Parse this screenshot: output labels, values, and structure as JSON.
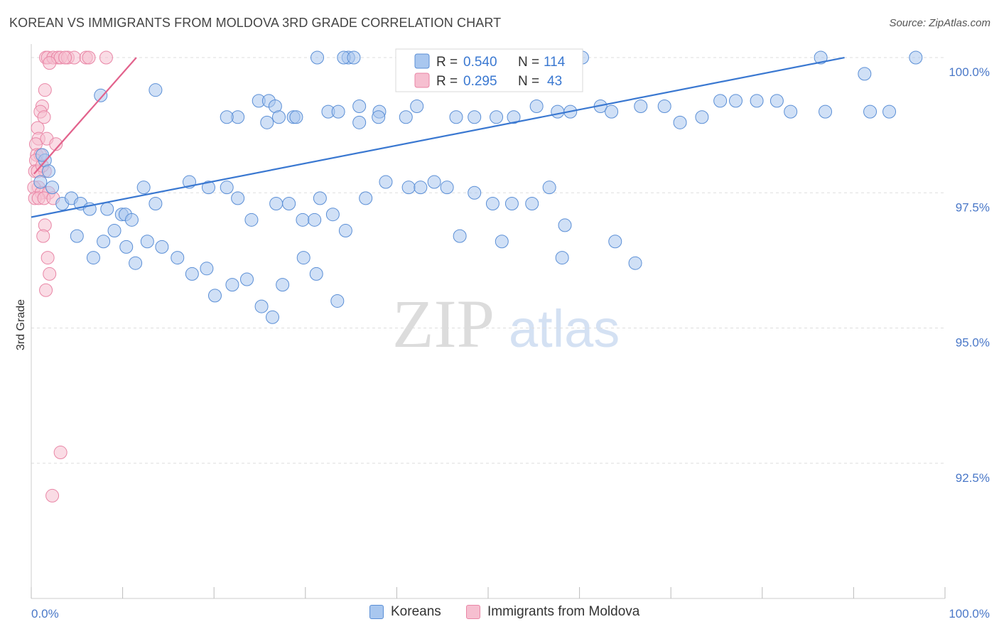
{
  "header": {
    "title": "KOREAN VS IMMIGRANTS FROM MOLDOVA 3RD GRADE CORRELATION CHART",
    "source": "Source: ZipAtlas.com"
  },
  "watermark": {
    "zip": "ZIP",
    "atlas": "atlas"
  },
  "legend": {
    "r_label": "R =",
    "n_label": "N =",
    "items": [
      {
        "name": "Koreans",
        "r": "0.540",
        "n": "114"
      },
      {
        "name": "Immigrants from Moldova",
        "r": "0.295",
        "n": "43"
      }
    ]
  },
  "colors": {
    "blue_fill": "#a9c7ef",
    "blue_stroke": "#5b8fd6",
    "blue_line": "#3a78d1",
    "pink_fill": "#f6bfd0",
    "pink_stroke": "#e986a6",
    "pink_line": "#e2628c",
    "tick_text": "#4a78c8",
    "grid": "#dddddd"
  },
  "chart_data": {
    "type": "scatter",
    "title": "KOREAN VS IMMIGRANTS FROM MOLDOVA 3RD GRADE CORRELATION CHART",
    "xlabel": "",
    "ylabel": "3rd Grade",
    "xlim": [
      0,
      100
    ],
    "ylim": [
      90.0,
      100.25
    ],
    "x_tick_labels": [
      "0.0%",
      "100.0%"
    ],
    "y_ticks": [
      {
        "value": 100.0,
        "label": "100.0%"
      },
      {
        "value": 97.5,
        "label": "97.5%"
      },
      {
        "value": 95.0,
        "label": "95.0%"
      },
      {
        "value": 92.5,
        "label": "92.5%"
      }
    ],
    "grid": true,
    "series": [
      {
        "name": "Koreans",
        "color": "blue",
        "trendline": [
          [
            0,
            97.05
          ],
          [
            89,
            100.0
          ]
        ],
        "points": [
          [
            31.3,
            100.0
          ],
          [
            34.7,
            100.0
          ],
          [
            34.2,
            100.0
          ],
          [
            35.3,
            100.0
          ],
          [
            47.8,
            100.0
          ],
          [
            57.8,
            100.0
          ],
          [
            60.3,
            100.0
          ],
          [
            86.4,
            100.0
          ],
          [
            96.8,
            100.0
          ],
          [
            91.2,
            99.7
          ],
          [
            7.6,
            99.3
          ],
          [
            13.6,
            99.4
          ],
          [
            24.9,
            99.2
          ],
          [
            26.0,
            99.2
          ],
          [
            26.7,
            99.1
          ],
          [
            32.5,
            99.0
          ],
          [
            35.9,
            99.1
          ],
          [
            38.1,
            99.0
          ],
          [
            28.7,
            98.9
          ],
          [
            33.6,
            99.0
          ],
          [
            22.6,
            98.9
          ],
          [
            21.4,
            98.9
          ],
          [
            25.8,
            98.8
          ],
          [
            27.1,
            98.9
          ],
          [
            29.0,
            98.9
          ],
          [
            35.9,
            98.8
          ],
          [
            38.0,
            98.9
          ],
          [
            42.2,
            99.1
          ],
          [
            41.0,
            98.9
          ],
          [
            46.5,
            98.9
          ],
          [
            48.5,
            98.9
          ],
          [
            50.9,
            98.9
          ],
          [
            52.8,
            98.9
          ],
          [
            55.3,
            99.1
          ],
          [
            57.6,
            99.0
          ],
          [
            59.0,
            99.0
          ],
          [
            62.3,
            99.1
          ],
          [
            63.5,
            99.0
          ],
          [
            66.7,
            99.1
          ],
          [
            69.3,
            99.1
          ],
          [
            71.0,
            98.8
          ],
          [
            73.4,
            98.9
          ],
          [
            75.4,
            99.2
          ],
          [
            77.1,
            99.2
          ],
          [
            79.4,
            99.2
          ],
          [
            81.6,
            99.2
          ],
          [
            83.1,
            99.0
          ],
          [
            86.9,
            99.0
          ],
          [
            91.8,
            99.0
          ],
          [
            93.9,
            99.0
          ],
          [
            1.0,
            97.7
          ],
          [
            1.5,
            98.1
          ],
          [
            1.2,
            98.2
          ],
          [
            1.9,
            97.9
          ],
          [
            2.3,
            97.6
          ],
          [
            3.4,
            97.3
          ],
          [
            4.4,
            97.4
          ],
          [
            5.4,
            97.3
          ],
          [
            6.4,
            97.2
          ],
          [
            8.3,
            97.2
          ],
          [
            9.9,
            97.1
          ],
          [
            10.3,
            97.1
          ],
          [
            11.0,
            97.0
          ],
          [
            12.3,
            97.6
          ],
          [
            13.6,
            97.3
          ],
          [
            17.3,
            97.7
          ],
          [
            19.4,
            97.6
          ],
          [
            21.4,
            97.6
          ],
          [
            22.6,
            97.4
          ],
          [
            24.1,
            97.0
          ],
          [
            26.8,
            97.3
          ],
          [
            28.2,
            97.3
          ],
          [
            29.7,
            97.0
          ],
          [
            31.0,
            97.0
          ],
          [
            31.6,
            97.4
          ],
          [
            33.0,
            97.1
          ],
          [
            34.4,
            96.8
          ],
          [
            36.6,
            97.4
          ],
          [
            38.8,
            97.7
          ],
          [
            41.3,
            97.6
          ],
          [
            42.6,
            97.6
          ],
          [
            44.1,
            97.7
          ],
          [
            45.5,
            97.6
          ],
          [
            46.9,
            96.7
          ],
          [
            48.5,
            97.5
          ],
          [
            50.5,
            97.3
          ],
          [
            52.6,
            97.3
          ],
          [
            54.8,
            97.3
          ],
          [
            56.7,
            97.6
          ],
          [
            58.4,
            96.9
          ],
          [
            5.0,
            96.7
          ],
          [
            6.8,
            96.3
          ],
          [
            7.9,
            96.6
          ],
          [
            9.1,
            96.8
          ],
          [
            10.4,
            96.5
          ],
          [
            11.4,
            96.2
          ],
          [
            12.7,
            96.6
          ],
          [
            14.3,
            96.5
          ],
          [
            16.0,
            96.3
          ],
          [
            17.6,
            96.0
          ],
          [
            19.2,
            96.1
          ],
          [
            20.1,
            95.6
          ],
          [
            22.0,
            95.8
          ],
          [
            23.6,
            95.9
          ],
          [
            25.2,
            95.4
          ],
          [
            26.4,
            95.2
          ],
          [
            27.5,
            95.8
          ],
          [
            29.8,
            96.3
          ],
          [
            31.2,
            96.0
          ],
          [
            33.5,
            95.5
          ],
          [
            51.5,
            96.6
          ],
          [
            58.1,
            96.3
          ],
          [
            63.9,
            96.6
          ],
          [
            66.1,
            96.2
          ]
        ]
      },
      {
        "name": "Immigrants from Moldova",
        "color": "pink",
        "trendline": [
          [
            0.3,
            97.85
          ],
          [
            11.5,
            100.0
          ]
        ],
        "points": [
          [
            1.6,
            100.0
          ],
          [
            1.8,
            100.0
          ],
          [
            2.4,
            100.0
          ],
          [
            2.9,
            100.0
          ],
          [
            3.2,
            100.0
          ],
          [
            4.0,
            100.0
          ],
          [
            4.7,
            100.0
          ],
          [
            6.0,
            100.0
          ],
          [
            6.3,
            100.0
          ],
          [
            8.2,
            100.0
          ],
          [
            2.0,
            99.9
          ],
          [
            1.5,
            99.4
          ],
          [
            1.2,
            99.1
          ],
          [
            1.0,
            99.0
          ],
          [
            1.4,
            98.9
          ],
          [
            0.7,
            98.7
          ],
          [
            0.8,
            98.5
          ],
          [
            1.7,
            98.5
          ],
          [
            0.5,
            98.4
          ],
          [
            0.6,
            98.2
          ],
          [
            1.0,
            98.2
          ],
          [
            0.5,
            98.1
          ],
          [
            0.4,
            97.9
          ],
          [
            1.5,
            97.9
          ],
          [
            0.7,
            97.9
          ],
          [
            1.2,
            98.0
          ],
          [
            2.7,
            98.4
          ],
          [
            0.8,
            97.6
          ],
          [
            0.3,
            97.6
          ],
          [
            1.1,
            97.5
          ],
          [
            1.9,
            97.5
          ],
          [
            0.4,
            97.4
          ],
          [
            0.8,
            97.4
          ],
          [
            1.4,
            97.4
          ],
          [
            2.4,
            97.4
          ],
          [
            1.5,
            96.9
          ],
          [
            1.3,
            96.7
          ],
          [
            1.8,
            96.3
          ],
          [
            2.0,
            96.0
          ],
          [
            1.6,
            95.7
          ],
          [
            3.7,
            100.0
          ],
          [
            3.2,
            92.7
          ],
          [
            2.3,
            91.9
          ]
        ]
      }
    ]
  }
}
